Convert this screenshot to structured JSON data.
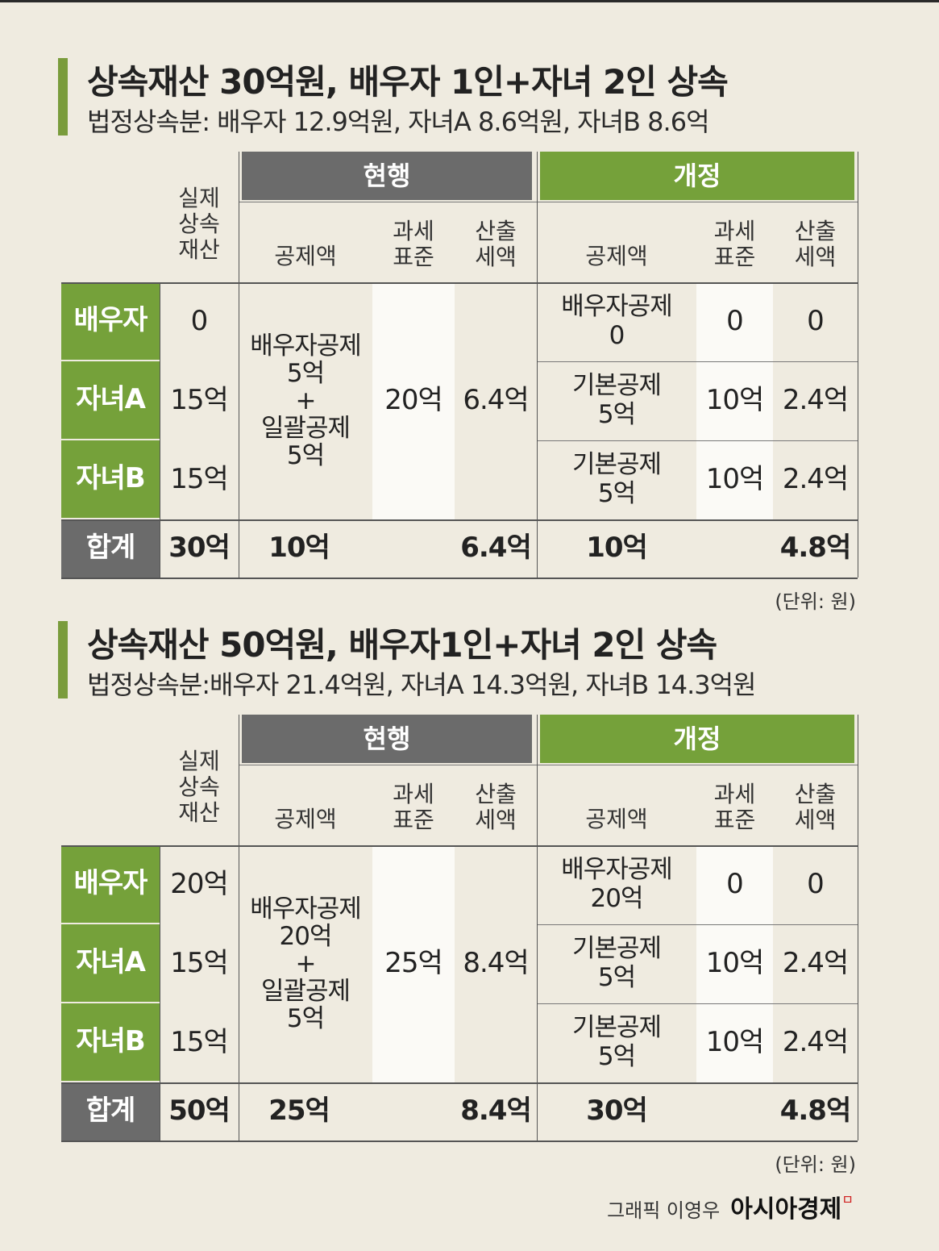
{
  "tables": [
    {
      "title": "상속재산 30억원, 배우자 1인+자녀 2인 상속",
      "subtitle": "법정상속분: 배우자 12.9억원, 자녀A 8.6억원, 자녀B 8.6억",
      "group_current": "현행",
      "group_revised": "개정",
      "col_actual": "실제\n상속\n재산",
      "col_deduction": "공제액",
      "col_taxbase": "과세\n표준",
      "col_tax": "산출\n세액",
      "rows": [
        {
          "label": "배우자",
          "actual": "0",
          "new_deduction": "배우자공제\n0",
          "new_taxbase": "0",
          "new_tax": "0"
        },
        {
          "label": "자녀A",
          "actual": "15억",
          "new_deduction": "기본공제\n5억",
          "new_taxbase": "10억",
          "new_tax": "2.4억"
        },
        {
          "label": "자녀B",
          "actual": "15억",
          "new_deduction": "기본공제\n5억",
          "new_taxbase": "10억",
          "new_tax": "2.4억"
        }
      ],
      "current_deduction": "배우자공제\n5억\n+\n일괄공제\n5억",
      "current_taxbase": "20억",
      "current_tax": "6.4억",
      "total": {
        "label": "합계",
        "actual": "30억",
        "cur_deduction": "10억",
        "cur_tax": "6.4억",
        "new_deduction": "10억",
        "new_tax": "4.8억"
      },
      "unit": "(단위: 원)"
    },
    {
      "title": "상속재산 50억원, 배우자1인+자녀 2인 상속",
      "subtitle": "법정상속분:배우자 21.4억원, 자녀A 14.3억원, 자녀B 14.3억원",
      "group_current": "현행",
      "group_revised": "개정",
      "col_actual": "실제\n상속\n재산",
      "col_deduction": "공제액",
      "col_taxbase": "과세\n표준",
      "col_tax": "산출\n세액",
      "rows": [
        {
          "label": "배우자",
          "actual": "20억",
          "new_deduction": "배우자공제\n20억",
          "new_taxbase": "0",
          "new_tax": "0"
        },
        {
          "label": "자녀A",
          "actual": "15억",
          "new_deduction": "기본공제\n5억",
          "new_taxbase": "10억",
          "new_tax": "2.4억"
        },
        {
          "label": "자녀B",
          "actual": "15억",
          "new_deduction": "기본공제\n5억",
          "new_taxbase": "10억",
          "new_tax": "2.4억"
        }
      ],
      "current_deduction": "배우자공제\n20억\n+\n일괄공제\n5억",
      "current_taxbase": "25억",
      "current_tax": "8.4억",
      "total": {
        "label": "합계",
        "actual": "50억",
        "cur_deduction": "25억",
        "cur_tax": "8.4억",
        "new_deduction": "30억",
        "new_tax": "4.8억"
      },
      "unit": "(단위: 원)"
    }
  ],
  "credit": {
    "byline": "그래픽 이영우",
    "brand": "아시아경제"
  }
}
